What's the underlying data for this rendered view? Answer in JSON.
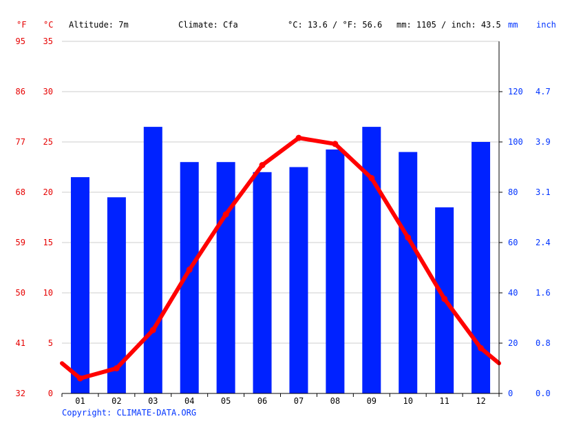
{
  "header": {
    "unit_f": "°F",
    "unit_c": "°C",
    "altitude": "Altitude: 7m",
    "climate": "Climate: Cfa",
    "temp_avg": "°C: 13.6 / °F: 56.6",
    "precip_total": "mm: 1105 / inch: 43.5",
    "unit_mm": "mm",
    "unit_inch": "inch"
  },
  "copyright": "Copyright: CLIMATE-DATA.ORG",
  "colors": {
    "temperature": "#ff0000",
    "precipitation": "#0022ff",
    "temp_axis": "#e60000",
    "precip_axis": "#0033ff",
    "grid": "#cccccc"
  },
  "chart_data": {
    "type": "bar",
    "categories": [
      "01",
      "02",
      "03",
      "04",
      "05",
      "06",
      "07",
      "08",
      "09",
      "10",
      "11",
      "12"
    ],
    "series": [
      {
        "type": "bar",
        "axis": "right",
        "values": [
          86,
          78,
          106,
          92,
          92,
          88,
          90,
          97,
          106,
          96,
          74,
          100
        ]
      },
      {
        "type": "line",
        "axis": "left",
        "values": [
          1.5,
          2.5,
          6.3,
          12.3,
          17.8,
          22.7,
          25.4,
          24.8,
          21.4,
          15.5,
          9.4,
          4.5
        ]
      }
    ],
    "left_axis": {
      "celsius_ticks": [
        "0",
        "5",
        "10",
        "15",
        "20",
        "25",
        "30",
        "35"
      ],
      "fahrenheit_ticks": [
        "32",
        "41",
        "50",
        "59",
        "68",
        "77",
        "86",
        "95"
      ],
      "ylim": [
        0,
        35
      ]
    },
    "right_axis": {
      "mm_ticks": [
        "0",
        "20",
        "40",
        "60",
        "80",
        "100",
        "120"
      ],
      "inch_ticks": [
        "0.0",
        "0.8",
        "1.6",
        "2.4",
        "3.1",
        "3.9",
        "4.7"
      ],
      "ylim": [
        0,
        140
      ]
    },
    "edge_temps": [
      3.0,
      3.0
    ],
    "grid": true
  }
}
